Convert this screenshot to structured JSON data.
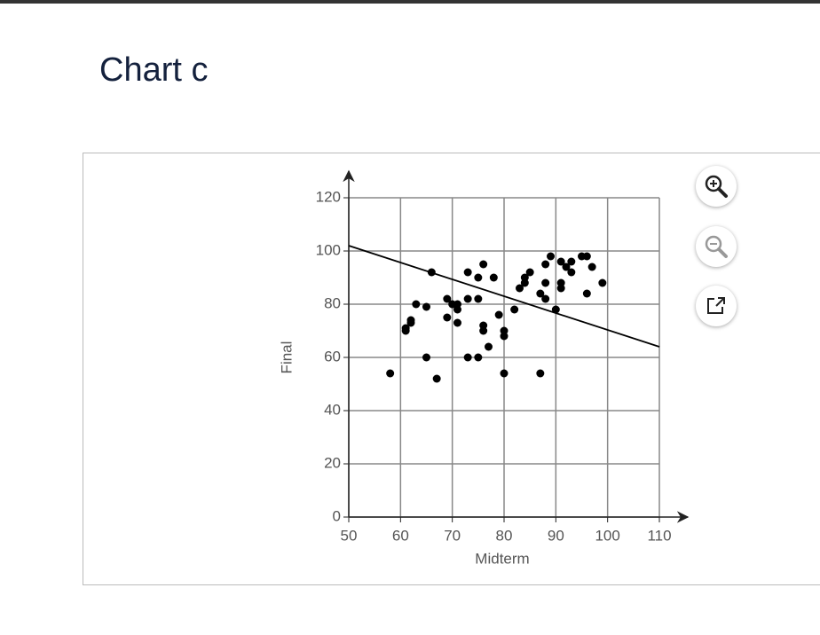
{
  "chart_data": {
    "type": "scatter",
    "title": "Chart c",
    "x_label": "Midterm",
    "y_label": "Final",
    "xlim": [
      50,
      110
    ],
    "xticks": [
      50,
      60,
      70,
      80,
      90,
      100,
      110
    ],
    "ylim": [
      0,
      120
    ],
    "yticks": [
      0,
      20,
      40,
      60,
      80,
      100,
      120
    ],
    "grid": true,
    "color": "#000000",
    "points": {
      "x": [
        58,
        61,
        61,
        62,
        62,
        63,
        65,
        65,
        66,
        67,
        69,
        69,
        70,
        71,
        71,
        71,
        73,
        73,
        73,
        75,
        75,
        75,
        76,
        76,
        76,
        77,
        78,
        79,
        80,
        80,
        80,
        82,
        83,
        84,
        84,
        85,
        87,
        87,
        88,
        88,
        88,
        89,
        90,
        91,
        91,
        91,
        92,
        93,
        93,
        95,
        96,
        96,
        97,
        99
      ],
      "y": [
        54,
        70,
        71,
        73,
        74,
        80,
        79,
        60,
        92,
        52,
        82,
        75,
        80,
        80,
        78,
        73,
        92,
        82,
        60,
        90,
        82,
        60,
        95,
        72,
        70,
        64,
        90,
        76,
        70,
        68,
        54,
        78,
        86,
        88,
        90,
        92,
        84,
        54,
        82,
        88,
        95,
        98,
        78,
        96,
        88,
        86,
        94,
        96,
        92,
        98,
        98,
        84,
        94,
        88
      ]
    },
    "trend_line": {
      "x": [
        50,
        110
      ],
      "y": [
        102,
        64
      ]
    }
  }
}
